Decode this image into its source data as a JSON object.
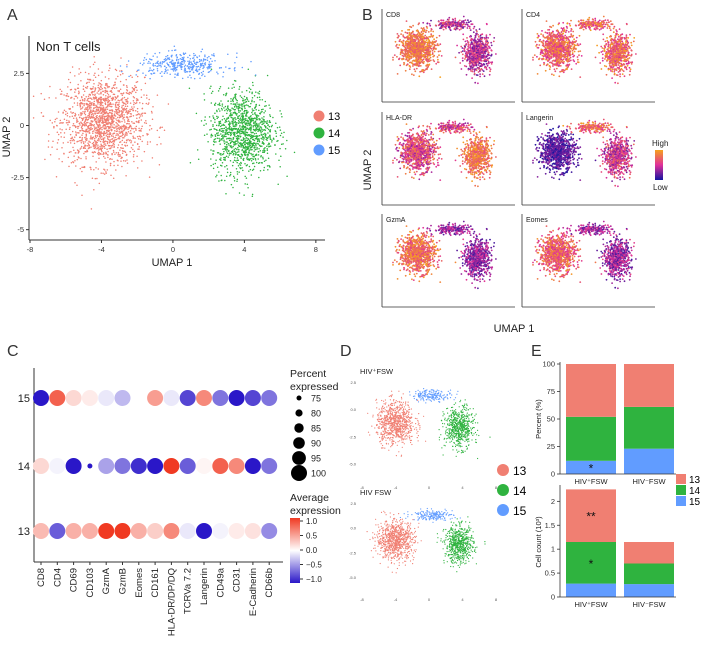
{
  "figure": {
    "panel_labels": [
      "A",
      "B",
      "C",
      "D",
      "E"
    ]
  },
  "colors": {
    "c13": "#f07f72",
    "c14": "#2fb33f",
    "c15": "#619cff",
    "low": "#2a17c8",
    "mid": "#ffffff",
    "high": "#f03a22",
    "heat_low": "#1414a0",
    "heat_mid": "#e0309a",
    "heat_high": "#f6a21c"
  },
  "chart_data": [
    {
      "panel": "A",
      "type": "scatter",
      "title": "Non T cells",
      "xlabel": "UMAP 1",
      "ylabel": "UMAP 2",
      "xlim": [
        -8,
        8.4
      ],
      "ylim": [
        -5.4,
        4.2
      ],
      "xticks": [
        -8,
        -4,
        0,
        4,
        8
      ],
      "yticks": [
        -5,
        -2.5,
        0,
        2.5
      ],
      "legend": [
        {
          "label": "13",
          "color": "#f07f72"
        },
        {
          "label": "14",
          "color": "#2fb33f"
        },
        {
          "label": "15",
          "color": "#619cff"
        }
      ],
      "clusters": [
        {
          "name": "13",
          "center": [
            -3.9,
            0.2
          ],
          "spread": [
            2.1,
            1.9
          ],
          "n": 1600,
          "xrange": [
            -7.8,
            1.8
          ],
          "yrange": [
            -4.2,
            3.3
          ]
        },
        {
          "name": "14",
          "center": [
            3.9,
            -0.3
          ],
          "spread": [
            1.6,
            1.8
          ],
          "n": 1200,
          "xrange": [
            0.9,
            7.7
          ],
          "yrange": [
            -4.3,
            2.7
          ]
        },
        {
          "name": "15",
          "center": [
            0.6,
            2.9
          ],
          "spread": [
            2.3,
            0.5
          ],
          "n": 360,
          "xrange": [
            -3.3,
            5.6
          ],
          "yrange": [
            1.7,
            3.9
          ]
        }
      ]
    },
    {
      "panel": "B",
      "type": "scatter",
      "subtype": "feature-plots",
      "xlabel": "UMAP 1",
      "ylabel": "UMAP 2",
      "legend": {
        "high": "High",
        "low": "Low"
      },
      "markers": [
        "CD8",
        "CD4",
        "HLA-DR",
        "Langerin",
        "GzmA",
        "Eomes"
      ]
    },
    {
      "panel": "C",
      "type": "dot",
      "genes": [
        "CD8",
        "CD4",
        "CD69",
        "CD103",
        "GzmA",
        "GzmB",
        "Eomes",
        "CD161",
        "HLA-DR/DP/DQ",
        "TCRVa 7.2",
        "Langerin",
        "CD49a",
        "CD31",
        "E-Cadherin",
        "CD66b"
      ],
      "clusters": [
        "15",
        "14",
        "13"
      ],
      "percent_expressed": [
        [
          100,
          100,
          100,
          100,
          100,
          100,
          100,
          100,
          100,
          100,
          100,
          100,
          100,
          100,
          100
        ],
        [
          100,
          100,
          100,
          75,
          100,
          100,
          100,
          100,
          100,
          100,
          100,
          100,
          100,
          100,
          100
        ],
        [
          100,
          100,
          100,
          100,
          100,
          100,
          100,
          100,
          100,
          100,
          100,
          100,
          100,
          100,
          100
        ]
      ],
      "average_expression": [
        [
          -1.0,
          0.8,
          0.2,
          0.1,
          -0.1,
          -0.3,
          0.0,
          0.5,
          -0.1,
          -0.8,
          0.6,
          -0.6,
          -1.0,
          -0.8,
          -0.6
        ],
        [
          0.2,
          -0.05,
          -1.0,
          -1.0,
          -0.4,
          -0.6,
          -0.9,
          -1.0,
          1.0,
          -0.7,
          0.05,
          0.8,
          0.6,
          -1.0,
          -0.6
        ],
        [
          0.35,
          -0.7,
          0.4,
          0.4,
          1.0,
          1.0,
          0.4,
          0.25,
          0.6,
          -0.1,
          -1.0,
          -0.05,
          0.1,
          0.15,
          -0.5
        ]
      ],
      "size_legend": {
        "title_line1": "Percent",
        "title_line2": "expressed",
        "values": [
          75,
          80,
          85,
          90,
          95,
          100
        ]
      },
      "color_legend": {
        "title_line1": "Average",
        "title_line2": "expression",
        "ticks": [
          "1.0",
          "0.5",
          "0.0",
          "−0.5",
          "−1.0"
        ]
      }
    },
    {
      "panel": "D",
      "type": "scatter",
      "plots": [
        {
          "title": "HIV⁺FSW",
          "xticks": [
            "-8",
            "-4",
            "0",
            "4",
            "8"
          ],
          "yticks": [
            "2.5",
            "0.0",
            "-2.5",
            "-5.0"
          ]
        },
        {
          "title": "HIV FSW",
          "xticks": [
            "-8",
            "-4",
            "0",
            "4",
            "8"
          ],
          "yticks": [
            "2.5",
            "0.0",
            "-2.5",
            "-5.0"
          ]
        }
      ],
      "legend": [
        "13",
        "14",
        "15"
      ]
    },
    {
      "panel": "E",
      "type": "bar",
      "stacked": true,
      "plots": [
        {
          "ylabel": "Percent (%)",
          "ylim": [
            0,
            100
          ],
          "yticks": [
            "0",
            "25",
            "50",
            "75",
            "100"
          ],
          "categories": [
            "HIV⁺FSW",
            "HIV⁻FSW"
          ],
          "series": [
            {
              "name": "15",
              "values": [
                12,
                23
              ]
            },
            {
              "name": "14",
              "values": [
                40,
                38
              ]
            },
            {
              "name": "13",
              "values": [
                48,
                39
              ]
            }
          ],
          "annotations": [
            {
              "category": 0,
              "series": "15",
              "text": "*"
            }
          ]
        },
        {
          "ylabel": "Cell count (10³)",
          "ylim": [
            0,
            2.3
          ],
          "yticks": [
            "0",
            "0.5",
            "1",
            "1.5",
            "2"
          ],
          "categories": [
            "HIV⁺FSW",
            "HIV⁻FSW"
          ],
          "series": [
            {
              "name": "15",
              "values": [
                0.28,
                0.27
              ]
            },
            {
              "name": "14",
              "values": [
                0.87,
                0.43
              ]
            },
            {
              "name": "13",
              "values": [
                1.1,
                0.45
              ]
            }
          ],
          "annotations": [
            {
              "category": 0,
              "series": "14",
              "text": "*"
            },
            {
              "category": 0,
              "series": "13",
              "text": "**"
            }
          ]
        }
      ],
      "legend": [
        "13",
        "14",
        "15"
      ]
    }
  ]
}
